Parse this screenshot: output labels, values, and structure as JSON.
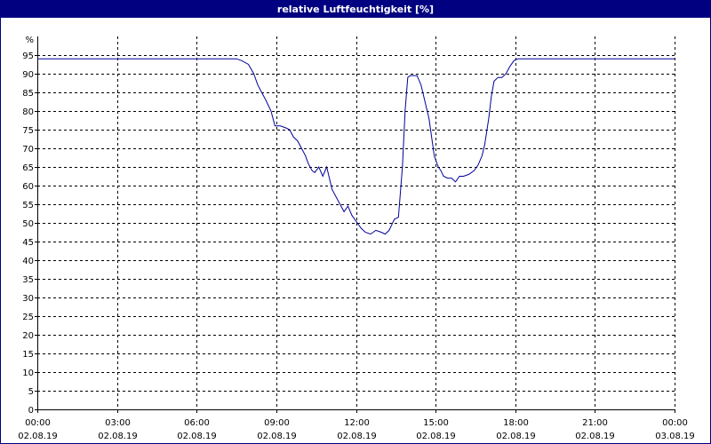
{
  "window": {
    "title": "relative Luftfeuchtigkeit [%]"
  },
  "colors": {
    "titlebar": "#000080",
    "line": "#000099",
    "grid": "#000000",
    "background": "#ffffff"
  },
  "chart_data": {
    "type": "line",
    "title": "relative Luftfeuchtigkeit [%]",
    "ylabel": "%",
    "xlabel": "",
    "ylim": [
      0,
      100
    ],
    "xlim": [
      0,
      24
    ],
    "grid": true,
    "yticks": [
      0,
      5,
      10,
      15,
      20,
      25,
      30,
      35,
      40,
      45,
      50,
      55,
      60,
      65,
      70,
      75,
      80,
      85,
      90,
      95
    ],
    "xticks": [
      {
        "x": 0,
        "time": "00:00",
        "date": "02.08.19"
      },
      {
        "x": 3,
        "time": "03:00",
        "date": "02.08.19"
      },
      {
        "x": 6,
        "time": "06:00",
        "date": "02.08.19"
      },
      {
        "x": 9,
        "time": "09:00",
        "date": "02.08.19"
      },
      {
        "x": 12,
        "time": "12:00",
        "date": "02.08.19"
      },
      {
        "x": 15,
        "time": "15:00",
        "date": "02.08.19"
      },
      {
        "x": 18,
        "time": "18:00",
        "date": "02.08.19"
      },
      {
        "x": 21,
        "time": "21:00",
        "date": "02.08.19"
      },
      {
        "x": 24,
        "time": "00:00",
        "date": "03.08.19"
      }
    ],
    "series": [
      {
        "x": [
          0,
          7.5,
          7.7,
          7.95,
          8.15,
          8.3,
          8.45,
          8.6,
          8.8,
          8.95,
          9.15,
          9.35,
          9.5,
          9.65,
          9.8,
          9.95,
          10.1,
          10.2,
          10.35,
          10.45,
          10.6,
          10.75,
          10.9,
          11.0,
          11.1,
          11.25,
          11.4,
          11.55,
          11.7,
          11.85,
          12.05,
          12.2,
          12.35,
          12.55,
          12.75,
          12.95,
          13.1,
          13.25,
          13.45,
          13.6,
          13.75,
          13.85,
          13.95,
          14.05,
          14.15,
          14.3,
          14.45,
          14.55,
          14.75,
          14.95,
          15.1,
          15.2,
          15.3,
          15.45,
          15.6,
          15.75,
          15.9,
          16.05,
          16.25,
          16.45,
          16.6,
          16.75,
          16.85,
          17.0,
          17.1,
          17.2,
          17.35,
          17.5,
          17.65,
          17.8,
          17.95,
          18.1,
          18.3,
          24
        ],
        "y": [
          94,
          94,
          93.5,
          92.5,
          90,
          87,
          85,
          83,
          80,
          76,
          76,
          75.5,
          75,
          73,
          72,
          70,
          68,
          66,
          64,
          63.5,
          65,
          62.5,
          65,
          62,
          59,
          57,
          55,
          53,
          54.5,
          52,
          50,
          48.5,
          47.5,
          47,
          48,
          47.5,
          47,
          48,
          51,
          51.5,
          65,
          80,
          89,
          89.5,
          89.5,
          89.5,
          87,
          84,
          78,
          68,
          65,
          64,
          62.5,
          62,
          62,
          61,
          62.5,
          62.5,
          63,
          64,
          65.5,
          68,
          71,
          78,
          84,
          88,
          89,
          89,
          90,
          92,
          93.5,
          94,
          94,
          94
        ]
      }
    ]
  }
}
